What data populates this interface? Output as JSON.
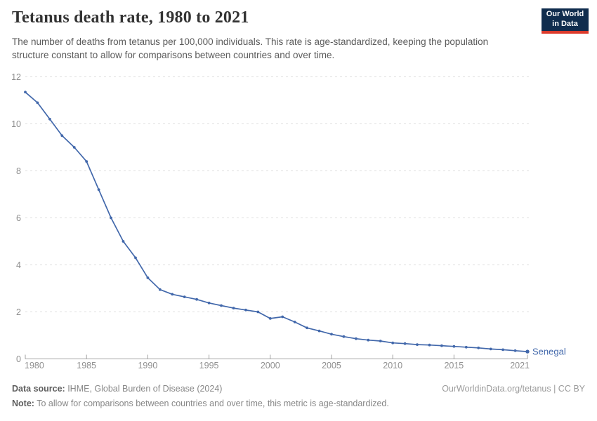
{
  "header": {
    "title": "Tetanus death rate, 1980 to 2021",
    "subtitle": "The number of deaths from tetanus per 100,000 individuals. This rate is age-standardized, keeping the population structure constant to allow for comparisons between countries and over time.",
    "logo": {
      "line1": "Our World",
      "line2": "in Data",
      "bg_color": "#102d4e",
      "bar_color": "#dc3b2c"
    }
  },
  "chart_data": {
    "type": "line",
    "title": "Tetanus death rate, 1980 to 2021",
    "xlabel": "",
    "ylabel": "",
    "ylim": [
      0,
      12
    ],
    "yticks": [
      0,
      2,
      4,
      6,
      8,
      10,
      12
    ],
    "xticks": [
      1980,
      1985,
      1990,
      1995,
      2000,
      2005,
      2010,
      2015,
      2021
    ],
    "grid": "dashed-horizontal",
    "legend_position": "end-of-line-label",
    "x": [
      1980,
      1981,
      1982,
      1983,
      1984,
      1985,
      1986,
      1987,
      1988,
      1989,
      1990,
      1991,
      1992,
      1993,
      1994,
      1995,
      1996,
      1997,
      1998,
      1999,
      2000,
      2001,
      2002,
      2003,
      2004,
      2005,
      2006,
      2007,
      2008,
      2009,
      2010,
      2011,
      2012,
      2013,
      2014,
      2015,
      2016,
      2017,
      2018,
      2019,
      2020,
      2021
    ],
    "series": [
      {
        "name": "Senegal",
        "color": "#4268ab",
        "values": [
          11.35,
          10.9,
          10.2,
          9.5,
          9.0,
          8.4,
          7.2,
          6.0,
          5.0,
          4.3,
          3.45,
          2.95,
          2.75,
          2.64,
          2.53,
          2.38,
          2.27,
          2.16,
          2.08,
          2.0,
          1.72,
          1.79,
          1.57,
          1.32,
          1.19,
          1.05,
          0.95,
          0.86,
          0.8,
          0.76,
          0.68,
          0.65,
          0.61,
          0.59,
          0.56,
          0.53,
          0.5,
          0.47,
          0.42,
          0.39,
          0.35,
          0.31
        ]
      }
    ],
    "axis_colors": {
      "tick_label": "#8f8f8f",
      "axis_line": "#a3a3a3",
      "gridline": "#dedede"
    }
  },
  "footer": {
    "source_label": "Data source:",
    "source_text": " IHME, Global Burden of Disease (2024)",
    "note_label": "Note:",
    "note_text": " To allow for comparisons between countries and over time, this metric is age-standardized.",
    "link_text": "OurWorldinData.org/tetanus | CC BY"
  }
}
